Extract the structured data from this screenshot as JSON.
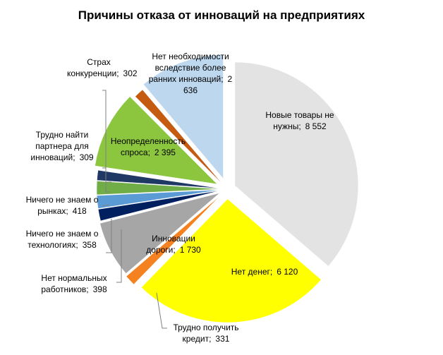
{
  "chart_data": {
    "type": "pie",
    "title": "Причины отказа от инноваций на предприятиях",
    "categories": [
      "Новые товары не нужны;",
      "Нет денег;",
      "Трудно получить кредит;",
      "Инновации дороги;",
      "Ничего не знаем о технологиях;",
      "Нет нормальных работников;",
      "Ничего не знаем о рынках;",
      "Трудно найти партнера для инноваций;",
      "Неопределенность спроса;",
      "Страх конкуренции;",
      "Нет необходимости вследствие более ранних инноваций;"
    ],
    "values": [
      8552,
      6120,
      331,
      1730,
      358,
      398,
      418,
      309,
      2395,
      302,
      2636
    ],
    "value_labels": [
      "8 552",
      "6 120",
      "331",
      "1 730",
      "358",
      "398",
      "418",
      "309",
      "2 395",
      "302",
      "2 636"
    ],
    "colors": [
      "#e3e3e3",
      "#ffff00",
      "#f58220",
      "#a6a6a6",
      "#002060",
      "#5b9bd5",
      "#70ad47",
      "#1f3864",
      "#8cc63f",
      "#c55a11",
      "#bdd7ee"
    ]
  }
}
